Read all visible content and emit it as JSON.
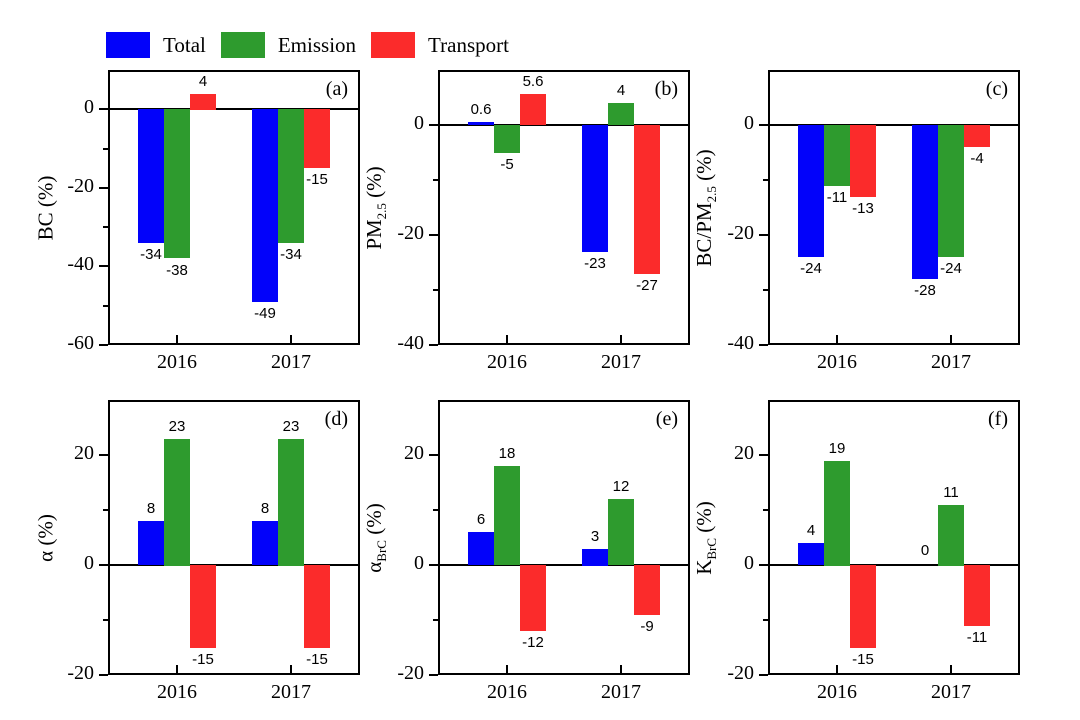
{
  "colors": {
    "total": "#0202fa",
    "emission": "#2e9b2e",
    "transport": "#fb2b2b",
    "axis": "#000000"
  },
  "legend": {
    "items": [
      {
        "label": "Total",
        "color_key": "total"
      },
      {
        "label": "Emission",
        "color_key": "emission"
      },
      {
        "label": "Transport",
        "color_key": "transport"
      }
    ]
  },
  "chart_data": [
    {
      "type": "bar",
      "panel_label": "(a)",
      "ylabel_parts": [
        {
          "text": "BC (%)"
        }
      ],
      "categories": [
        "2016",
        "2017"
      ],
      "series": [
        {
          "name": "Total",
          "values": [
            -34,
            -49
          ]
        },
        {
          "name": "Emission",
          "values": [
            -38,
            -34
          ]
        },
        {
          "name": "Transport",
          "values": [
            4,
            -15
          ]
        }
      ],
      "ylim": [
        -60,
        10
      ],
      "yticks": [
        0,
        -20,
        -40,
        -60
      ],
      "minor_tick_step": 10,
      "grid": false,
      "legend_position": "top-left-of-figure"
    },
    {
      "type": "bar",
      "panel_label": "(b)",
      "ylabel_parts": [
        {
          "text": "PM"
        },
        {
          "text": "2.5",
          "sub": true
        },
        {
          "text": " (%)"
        }
      ],
      "categories": [
        "2016",
        "2017"
      ],
      "series": [
        {
          "name": "Total",
          "values": [
            0.6,
            -23
          ]
        },
        {
          "name": "Emission",
          "values": [
            -5,
            4
          ]
        },
        {
          "name": "Transport",
          "values": [
            5.6,
            -27
          ]
        }
      ],
      "ylim": [
        -40,
        10
      ],
      "yticks": [
        0,
        -20,
        -40
      ],
      "minor_tick_step": 10,
      "grid": false
    },
    {
      "type": "bar",
      "panel_label": "(c)",
      "ylabel_parts": [
        {
          "text": "BC/PM"
        },
        {
          "text": "2.5",
          "sub": true
        },
        {
          "text": " (%)"
        }
      ],
      "categories": [
        "2016",
        "2017"
      ],
      "series": [
        {
          "name": "Total",
          "values": [
            -24,
            -28
          ]
        },
        {
          "name": "Emission",
          "values": [
            -11,
            -24
          ]
        },
        {
          "name": "Transport",
          "values": [
            -13,
            -4
          ]
        }
      ],
      "ylim": [
        -40,
        10
      ],
      "yticks": [
        0,
        -20,
        -40
      ],
      "minor_tick_step": 10,
      "grid": false
    },
    {
      "type": "bar",
      "panel_label": "(d)",
      "ylabel_parts": [
        {
          "text": "α (%)"
        }
      ],
      "categories": [
        "2016",
        "2017"
      ],
      "series": [
        {
          "name": "Total",
          "values": [
            8,
            8
          ]
        },
        {
          "name": "Emission",
          "values": [
            23,
            23
          ]
        },
        {
          "name": "Transport",
          "values": [
            -15,
            -15
          ]
        }
      ],
      "ylim": [
        -20,
        30
      ],
      "yticks": [
        20,
        0,
        -20
      ],
      "minor_tick_step": 10,
      "grid": false
    },
    {
      "type": "bar",
      "panel_label": "(e)",
      "ylabel_parts": [
        {
          "text": "α"
        },
        {
          "text": "BrC",
          "sub": true
        },
        {
          "text": " (%)"
        }
      ],
      "categories": [
        "2016",
        "2017"
      ],
      "series": [
        {
          "name": "Total",
          "values": [
            6,
            3
          ]
        },
        {
          "name": "Emission",
          "values": [
            18,
            12
          ]
        },
        {
          "name": "Transport",
          "values": [
            -12,
            -9
          ]
        }
      ],
      "ylim": [
        -20,
        30
      ],
      "yticks": [
        20,
        0,
        -20
      ],
      "minor_tick_step": 10,
      "grid": false
    },
    {
      "type": "bar",
      "panel_label": "(f)",
      "ylabel_parts": [
        {
          "text": "K"
        },
        {
          "text": "BrC",
          "sub": true
        },
        {
          "text": " (%)"
        }
      ],
      "categories": [
        "2016",
        "2017"
      ],
      "series": [
        {
          "name": "Total",
          "values": [
            4,
            0
          ]
        },
        {
          "name": "Emission",
          "values": [
            19,
            11
          ]
        },
        {
          "name": "Transport",
          "values": [
            -15,
            -11
          ]
        }
      ],
      "ylim": [
        -20,
        30
      ],
      "yticks": [
        20,
        0,
        -20
      ],
      "minor_tick_step": 10,
      "grid": false
    }
  ]
}
